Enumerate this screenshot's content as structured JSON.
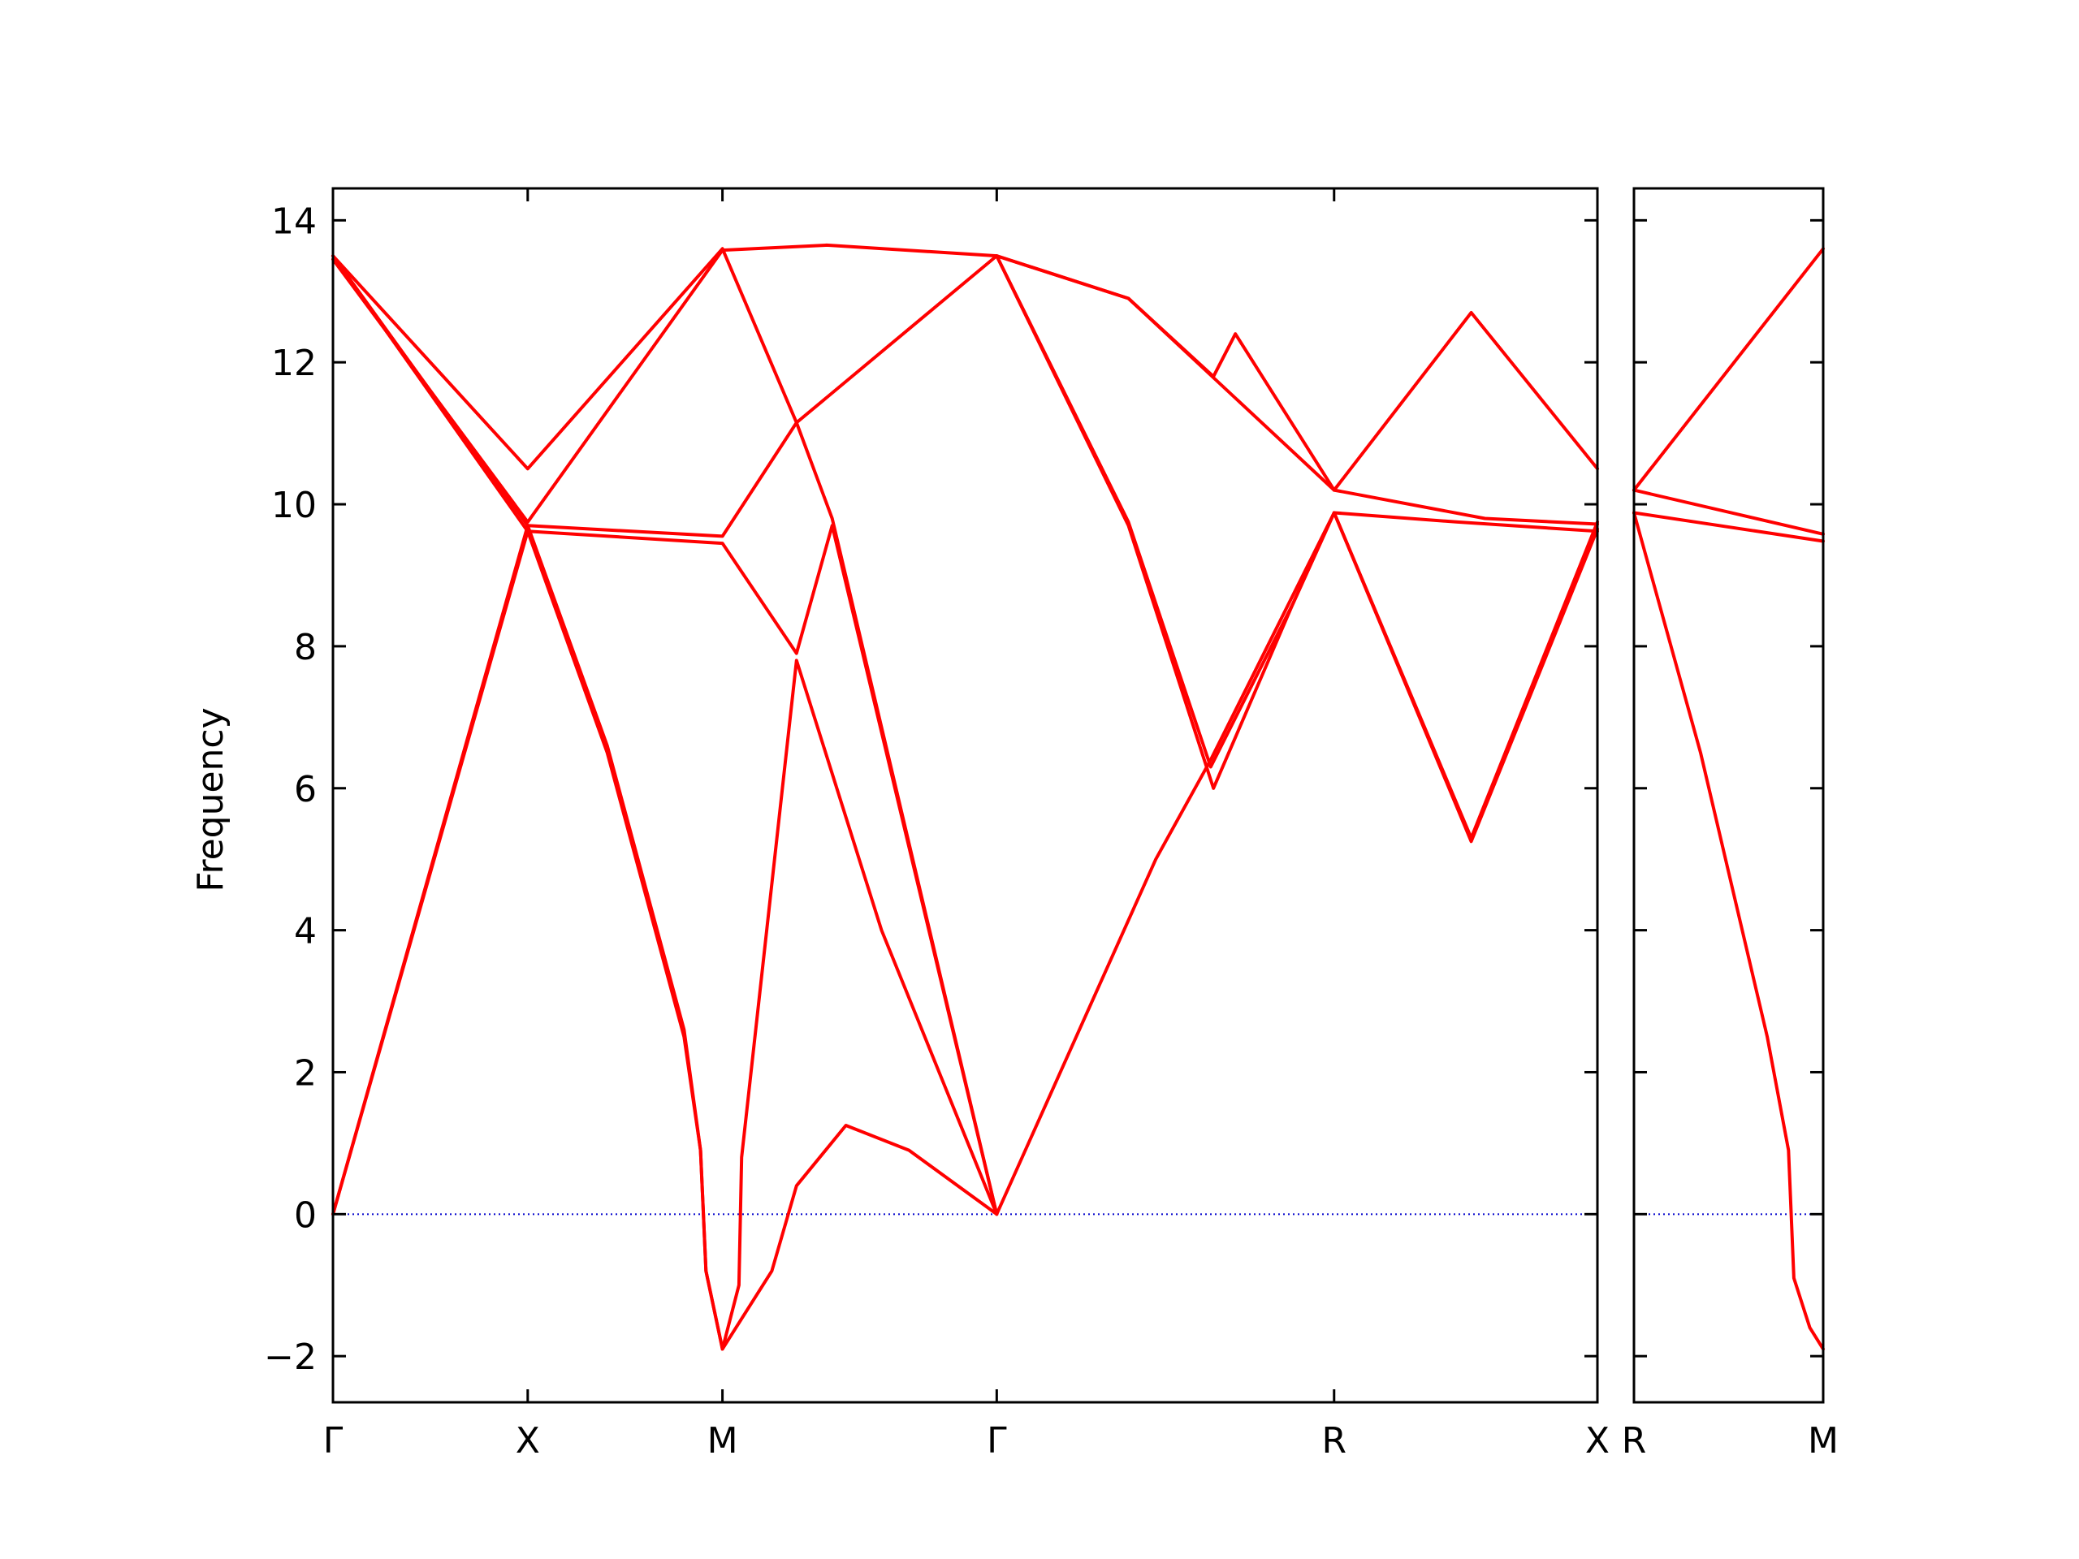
{
  "chart_data": {
    "type": "line",
    "ylabel": "Frequency",
    "xlabel": "",
    "ylim": [
      -2.65,
      14.45
    ],
    "yticks": [
      -2,
      0,
      2,
      4,
      6,
      8,
      10,
      12,
      14
    ],
    "ytick_labels": [
      "−2",
      "0",
      "2",
      "4",
      "6",
      "8",
      "10",
      "12",
      "14"
    ],
    "grid": false,
    "colors": {
      "bands": "#ff0000",
      "zero_line": "#0000cc",
      "axes": "#000000"
    },
    "panels": [
      {
        "name": "main",
        "x_range": [
          0,
          4.61
        ],
        "xticks": [
          {
            "x": 0,
            "label": "Γ"
          },
          {
            "x": 0.71,
            "label": "X"
          },
          {
            "x": 1.42,
            "label": "M"
          },
          {
            "x": 2.42,
            "label": "Γ"
          },
          {
            "x": 3.65,
            "label": "R"
          },
          {
            "x": 4.61,
            "label": "X"
          }
        ],
        "series": [
          {
            "values": [
              [
                0,
                0
              ],
              [
                0.71,
                9.7
              ],
              [
                1.42,
                9.55
              ],
              [
                1.69,
                11.15
              ],
              [
                2.42,
                13.5
              ]
            ]
          },
          {
            "values": [
              [
                0,
                0
              ],
              [
                0.71,
                9.62
              ],
              [
                1.42,
                9.45
              ],
              [
                1.69,
                7.9
              ],
              [
                1.82,
                9.7
              ],
              [
                2.42,
                0
              ]
            ]
          },
          {
            "values": [
              [
                0,
                13.5
              ],
              [
                0.71,
                9.62
              ],
              [
                1.0,
                6.5
              ],
              [
                1.28,
                2.5
              ],
              [
                1.34,
                0.9
              ],
              [
                1.36,
                -0.8
              ],
              [
                1.42,
                -1.9
              ],
              [
                1.6,
                -0.8
              ],
              [
                1.69,
                0.4
              ],
              [
                1.87,
                1.25
              ],
              [
                2.1,
                0.9
              ],
              [
                2.42,
                0
              ]
            ]
          },
          {
            "values": [
              [
                0,
                13.5
              ],
              [
                0.71,
                9.7
              ],
              [
                1.0,
                6.6
              ],
              [
                1.28,
                2.6
              ],
              [
                1.34,
                0.9
              ],
              [
                1.36,
                -0.8
              ],
              [
                1.42,
                -1.9
              ],
              [
                1.48,
                -1.0
              ],
              [
                1.49,
                0.8
              ],
              [
                1.69,
                7.8
              ],
              [
                2.0,
                4.0
              ],
              [
                2.42,
                0
              ]
            ]
          },
          {
            "values": [
              [
                0,
                13.5
              ],
              [
                0.71,
                10.5
              ],
              [
                1.42,
                13.6
              ],
              [
                1.69,
                11.15
              ],
              [
                1.82,
                9.8
              ],
              [
                2.42,
                0
              ]
            ]
          },
          {
            "values": [
              [
                0,
                13.45
              ],
              [
                0.71,
                9.75
              ],
              [
                1.42,
                13.58
              ],
              [
                1.8,
                13.65
              ],
              [
                2.42,
                13.5
              ],
              [
                2.9,
                12.9
              ],
              [
                3.65,
                10.2
              ],
              [
                4.2,
                9.8
              ],
              [
                4.61,
                9.72
              ]
            ]
          },
          {
            "values": [
              [
                2.42,
                13.5
              ],
              [
                2.9,
                9.7
              ],
              [
                3.21,
                6.0
              ],
              [
                3.5,
                8.6
              ],
              [
                3.65,
                9.88
              ],
              [
                4.1,
                9.75
              ],
              [
                4.61,
                9.62
              ]
            ]
          },
          {
            "values": [
              [
                2.42,
                0
              ],
              [
                3.0,
                5.0
              ],
              [
                3.2,
                6.4
              ],
              [
                3.65,
                9.88
              ],
              [
                4.15,
                5.25
              ],
              [
                4.61,
                9.65
              ]
            ]
          },
          {
            "values": [
              [
                2.42,
                13.5
              ],
              [
                2.9,
                12.9
              ],
              [
                3.21,
                11.8
              ],
              [
                3.29,
                12.4
              ],
              [
                3.65,
                10.2
              ],
              [
                4.15,
                12.7
              ],
              [
                4.61,
                10.5
              ]
            ]
          },
          {
            "values": [
              [
                2.42,
                13.5
              ],
              [
                2.9,
                9.75
              ],
              [
                3.2,
                6.3
              ],
              [
                3.5,
                8.6
              ],
              [
                3.65,
                9.88
              ],
              [
                4.15,
                5.3
              ],
              [
                4.61,
                9.75
              ]
            ]
          }
        ]
      },
      {
        "name": "side",
        "x_range": [
          0,
          0.71
        ],
        "xticks": [
          {
            "x": 0,
            "label": "R"
          },
          {
            "x": 0.71,
            "label": "M"
          }
        ],
        "series": [
          {
            "values": [
              [
                0,
                10.2
              ],
              [
                0.71,
                13.6
              ]
            ]
          },
          {
            "values": [
              [
                0,
                10.2
              ],
              [
                0.71,
                9.58
              ]
            ]
          },
          {
            "values": [
              [
                0,
                9.88
              ],
              [
                0.71,
                9.48
              ]
            ]
          },
          {
            "values": [
              [
                0,
                9.88
              ],
              [
                0.25,
                6.5
              ],
              [
                0.5,
                2.5
              ],
              [
                0.58,
                0.9
              ],
              [
                0.6,
                -0.9
              ],
              [
                0.66,
                -1.6
              ],
              [
                0.71,
                -1.9
              ]
            ]
          }
        ]
      }
    ]
  }
}
